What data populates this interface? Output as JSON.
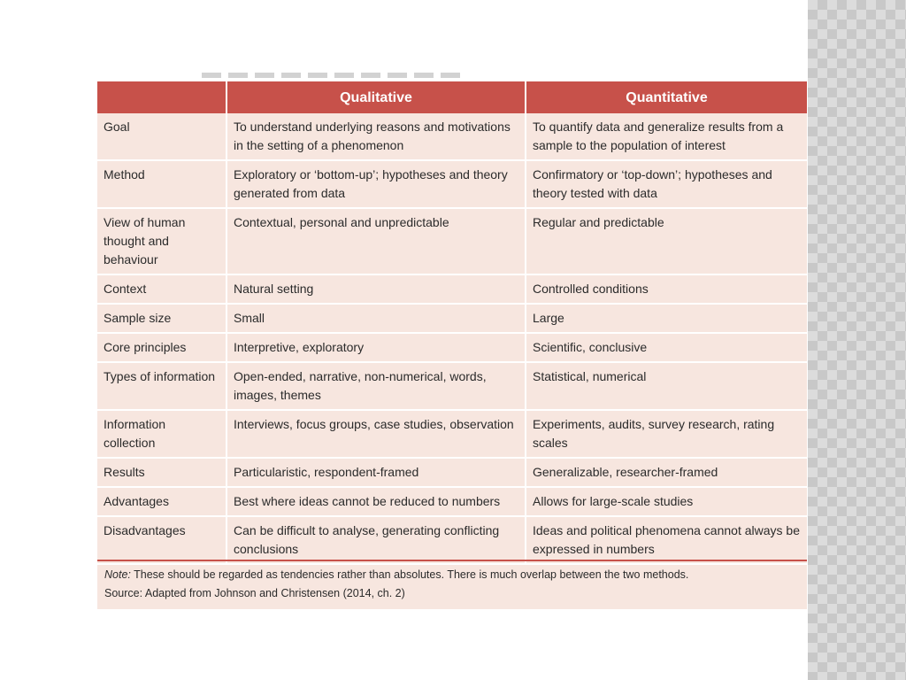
{
  "table": {
    "headers": [
      "",
      "Qualitative",
      "Quantitative"
    ],
    "rows": [
      {
        "label": "Goal",
        "qualitative": "To understand underlying reasons and motivations in the setting of a phenomenon",
        "quantitative": "To quantify data and generalize results from a sample to the population of interest"
      },
      {
        "label": "Method",
        "qualitative": "Exploratory or ‘bottom-up’; hypotheses and theory generated from data",
        "quantitative": "Confirmatory or ‘top-down’; hypotheses and theory tested with data"
      },
      {
        "label": "View of human thought and behaviour",
        "qualitative": "Contextual, personal and unpredictable",
        "quantitative": "Regular and predictable"
      },
      {
        "label": "Context",
        "qualitative": "Natural setting",
        "quantitative": "Controlled conditions"
      },
      {
        "label": "Sample size",
        "qualitative": "Small",
        "quantitative": "Large"
      },
      {
        "label": "Core principles",
        "qualitative": "Interpretive, exploratory",
        "quantitative": "Scientific, conclusive"
      },
      {
        "label": "Types of information",
        "qualitative": "Open-ended, narrative, non-numerical, words, images, themes",
        "quantitative": "Statistical, numerical"
      },
      {
        "label": "Information collection",
        "qualitative": "Interviews, focus groups, case studies, observation",
        "quantitative": "Experiments, audits, survey research, rating scales"
      },
      {
        "label": "Results",
        "qualitative": "Particularistic, respondent-framed",
        "quantitative": "Generalizable, researcher-framed"
      },
      {
        "label": "Advantages",
        "qualitative": "Best where ideas cannot be reduced to numbers",
        "quantitative": "Allows for large-scale studies"
      },
      {
        "label": "Disadvantages",
        "qualitative": "Can be difficult to analyse, generating conflicting conclusions",
        "quantitative": "Ideas and political phenomena cannot always be expressed in numbers"
      }
    ]
  },
  "note": {
    "label": "Note:",
    "text": " These should be regarded as tendencies rather than absolutes. There is much overlap between the two methods."
  },
  "source": "Source: Adapted from Johnson and Christensen (2014, ch. 2)",
  "colors": {
    "header_bg": "#c7514a",
    "cell_bg": "#f7e6df",
    "side_pattern": "#d0d0d0"
  }
}
